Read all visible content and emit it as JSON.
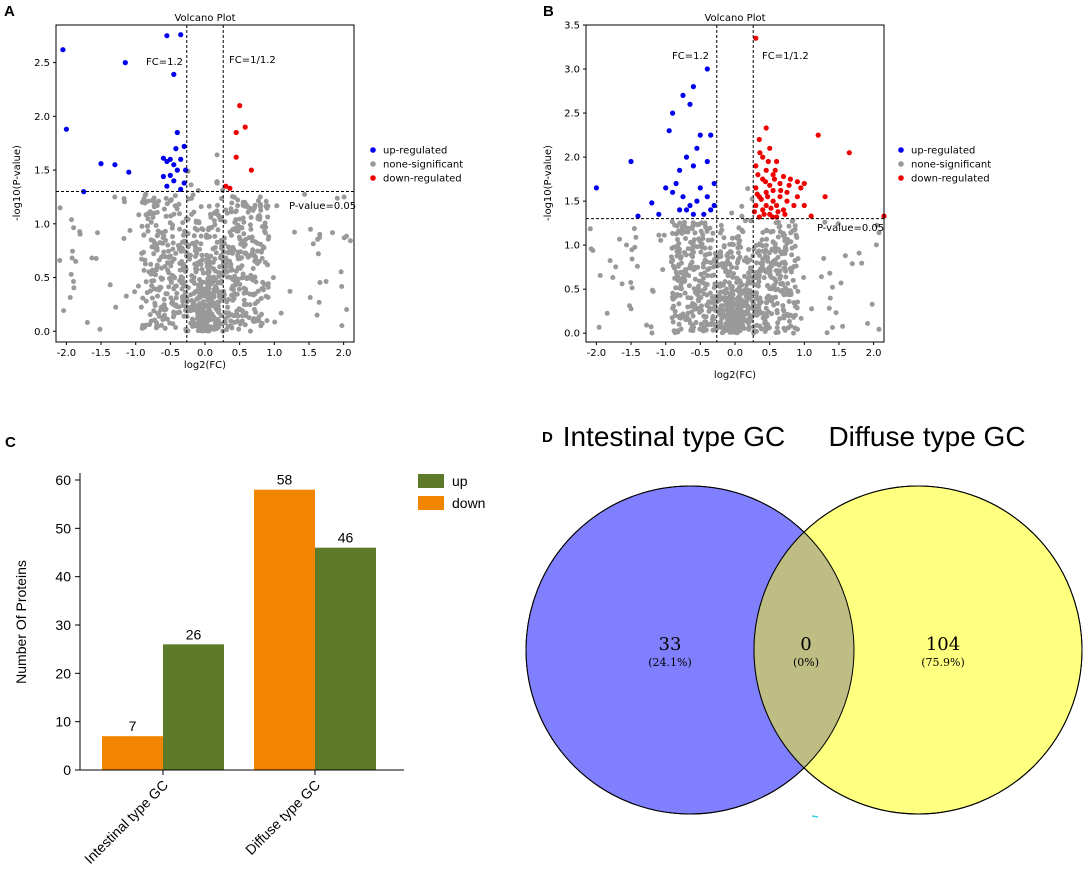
{
  "panels": {
    "a": "A",
    "b": "B",
    "c": "C",
    "d": "D"
  },
  "chart_data": [
    {
      "type": "scatter",
      "panel": "A",
      "title": "Volcano Plot",
      "xlabel": "log2(FC)",
      "ylabel": "-log10(P-value)",
      "xlim": [
        -2.15,
        2.15
      ],
      "ylim": [
        -0.1,
        2.85
      ],
      "xticks": [
        "-2.0",
        "-1.5",
        "-1.0",
        "-0.5",
        "0.0",
        "0.5",
        "1.0",
        "1.5",
        "2.0"
      ],
      "xtick_values": [
        -2.0,
        -1.5,
        -1.0,
        -0.5,
        0.0,
        0.5,
        1.0,
        1.5,
        2.0
      ],
      "yticks": [
        "0.0",
        "0.5",
        "1.0",
        "1.5",
        "2.0",
        "2.5"
      ],
      "ytick_values": [
        0.0,
        0.5,
        1.0,
        1.5,
        2.0,
        2.5
      ],
      "fc_left": -0.263,
      "fc_right": 0.263,
      "pvalue_line": 1.301,
      "annotations": {
        "fc_left": "FC=1.2",
        "fc_right": "FC=1/1.2",
        "pvalue": "P-value=0.05"
      },
      "legend": [
        {
          "label": "up-regulated",
          "color": "#0000ee"
        },
        {
          "label": "none-significant",
          "color": "#999999"
        },
        {
          "label": "down-regulated",
          "color": "#ee0000"
        }
      ],
      "series": [
        {
          "name": "up-regulated",
          "color": "#0000ee",
          "points": [
            [
              -2.05,
              2.62
            ],
            [
              -2.0,
              1.88
            ],
            [
              -1.15,
              2.5
            ],
            [
              -0.55,
              2.75
            ],
            [
              -0.35,
              2.76
            ],
            [
              -0.45,
              2.39
            ],
            [
              -1.75,
              1.3
            ],
            [
              -1.5,
              1.56
            ],
            [
              -1.3,
              1.55
            ],
            [
              -1.1,
              1.48
            ],
            [
              -0.6,
              1.61
            ],
            [
              -0.55,
              1.58
            ],
            [
              -0.45,
              1.55
            ],
            [
              -0.35,
              1.6
            ],
            [
              -0.4,
              1.5
            ],
            [
              -0.5,
              1.45
            ],
            [
              -0.3,
              1.38
            ],
            [
              -0.45,
              1.4
            ],
            [
              -0.55,
              1.35
            ],
            [
              -0.35,
              1.32
            ],
            [
              -0.4,
              1.85
            ],
            [
              -0.3,
              1.72
            ],
            [
              -0.5,
              1.6
            ],
            [
              -0.6,
              1.44
            ],
            [
              -0.28,
              1.5
            ],
            [
              -0.42,
              1.7
            ]
          ]
        },
        {
          "name": "down-regulated",
          "color": "#ee0000",
          "points": [
            [
              0.5,
              2.1
            ],
            [
              0.58,
              1.9
            ],
            [
              0.45,
              1.85
            ],
            [
              0.45,
              1.62
            ],
            [
              0.67,
              1.5
            ],
            [
              0.3,
              1.35
            ],
            [
              0.36,
              1.33
            ]
          ]
        }
      ]
    },
    {
      "type": "scatter",
      "panel": "B",
      "title": "Volcano Plot",
      "xlabel": "log2(FC)",
      "ylabel": "-log10(P-value)",
      "xlim": [
        -2.15,
        2.15
      ],
      "ylim": [
        -0.1,
        3.5
      ],
      "xticks": [
        "-2.0",
        "-1.5",
        "-1.0",
        "-0.5",
        "0.0",
        "0.5",
        "1.0",
        "1.5",
        "2.0"
      ],
      "xtick_values": [
        -2.0,
        -1.5,
        -1.0,
        -0.5,
        0.0,
        0.5,
        1.0,
        1.5,
        2.0
      ],
      "yticks": [
        "0.0",
        "0.5",
        "1.0",
        "1.5",
        "2.0",
        "2.5",
        "3.0",
        "3.5"
      ],
      "ytick_values": [
        0.0,
        0.5,
        1.0,
        1.5,
        2.0,
        2.5,
        3.0,
        3.5
      ],
      "fc_left": -0.263,
      "fc_right": 0.263,
      "pvalue_line": 1.301,
      "annotations": {
        "fc_left": "FC=1.2",
        "fc_right": "FC=1/1.2",
        "pvalue": "P-value=0.05"
      },
      "legend": [
        {
          "label": "up-regulated",
          "color": "#0000ee"
        },
        {
          "label": "none-significant",
          "color": "#999999"
        },
        {
          "label": "down-regulated",
          "color": "#ee0000"
        }
      ],
      "series": [
        {
          "name": "up-regulated",
          "color": "#0000ee",
          "points": [
            [
              -2.0,
              1.65
            ],
            [
              -1.5,
              1.95
            ],
            [
              -1.4,
              1.33
            ],
            [
              -1.2,
              1.48
            ],
            [
              -1.1,
              1.35
            ],
            [
              -0.95,
              2.3
            ],
            [
              -0.9,
              2.5
            ],
            [
              -0.75,
              2.7
            ],
            [
              -0.65,
              2.6
            ],
            [
              -0.6,
              2.8
            ],
            [
              -0.4,
              3.0
            ],
            [
              -0.35,
              2.25
            ],
            [
              -0.5,
              2.25
            ],
            [
              -0.55,
              2.1
            ],
            [
              -0.7,
              2.0
            ],
            [
              -0.8,
              1.85
            ],
            [
              -0.6,
              1.9
            ],
            [
              -0.4,
              1.95
            ],
            [
              -0.3,
              1.7
            ],
            [
              -0.85,
              1.7
            ],
            [
              -0.75,
              1.55
            ],
            [
              -0.65,
              1.45
            ],
            [
              -0.55,
              1.5
            ],
            [
              -0.45,
              1.35
            ],
            [
              -0.35,
              1.4
            ],
            [
              -0.6,
              1.35
            ],
            [
              -0.7,
              1.4
            ],
            [
              -0.5,
              1.65
            ],
            [
              -0.4,
              1.55
            ],
            [
              -0.3,
              1.45
            ],
            [
              -0.9,
              1.6
            ],
            [
              -0.8,
              1.4
            ],
            [
              -1.0,
              1.65
            ]
          ]
        },
        {
          "name": "down-regulated",
          "color": "#ee0000",
          "points": [
            [
              0.3,
              3.35
            ],
            [
              0.45,
              2.33
            ],
            [
              0.35,
              2.2
            ],
            [
              0.5,
              2.1
            ],
            [
              0.4,
              2.0
            ],
            [
              0.6,
              1.95
            ],
            [
              0.3,
              1.9
            ],
            [
              0.45,
              1.85
            ],
            [
              0.55,
              1.8
            ],
            [
              0.7,
              1.78
            ],
            [
              0.8,
              1.75
            ],
            [
              0.9,
              1.72
            ],
            [
              1.2,
              2.25
            ],
            [
              1.65,
              2.05
            ],
            [
              1.3,
              1.55
            ],
            [
              2.15,
              1.33
            ],
            [
              1.1,
              1.33
            ],
            [
              1.0,
              1.45
            ],
            [
              0.95,
              1.65
            ],
            [
              0.75,
              1.6
            ],
            [
              0.65,
              1.55
            ],
            [
              0.55,
              1.5
            ],
            [
              0.45,
              1.6
            ],
            [
              0.35,
              1.55
            ],
            [
              0.3,
              1.45
            ],
            [
              0.4,
              1.4
            ],
            [
              0.5,
              1.35
            ],
            [
              0.6,
              1.32
            ],
            [
              0.35,
              1.32
            ],
            [
              0.28,
              1.38
            ],
            [
              0.85,
              1.45
            ],
            [
              0.7,
              1.4
            ],
            [
              0.45,
              1.45
            ],
            [
              0.55,
              1.62
            ],
            [
              0.65,
              1.7
            ],
            [
              0.3,
              1.65
            ],
            [
              0.4,
              1.75
            ],
            [
              0.5,
              1.68
            ],
            [
              0.75,
              1.5
            ],
            [
              0.6,
              1.45
            ],
            [
              0.38,
              1.52
            ],
            [
              0.32,
              1.58
            ],
            [
              0.42,
              1.35
            ],
            [
              0.52,
              1.42
            ],
            [
              0.62,
              1.38
            ],
            [
              0.72,
              1.35
            ],
            [
              0.9,
              1.55
            ],
            [
              1.0,
              1.7
            ],
            [
              0.48,
              1.95
            ],
            [
              0.58,
              1.85
            ],
            [
              0.36,
              2.05
            ],
            [
              0.44,
              1.72
            ],
            [
              0.54,
              1.32
            ],
            [
              0.66,
              1.62
            ],
            [
              0.78,
              1.68
            ],
            [
              0.33,
              1.8
            ],
            [
              0.47,
              1.55
            ],
            [
              0.57,
              1.75
            ]
          ]
        }
      ]
    },
    {
      "type": "bar",
      "panel": "C",
      "title": "",
      "xlabel": "",
      "ylabel": "Number Of Proteins",
      "ylim": [
        0,
        60
      ],
      "yticks": [
        "0",
        "10",
        "20",
        "30",
        "40",
        "50",
        "60"
      ],
      "ytick_values": [
        0,
        10,
        20,
        30,
        40,
        50,
        60
      ],
      "categories": [
        "Intestinal type GC",
        "Diffuse type GC"
      ],
      "series": [
        {
          "name": "down",
          "color": "#f28500",
          "values": [
            7,
            58
          ],
          "labels": [
            "7",
            "58"
          ]
        },
        {
          "name": "up",
          "color": "#5c7a29",
          "values": [
            26,
            46
          ],
          "labels": [
            "26",
            "46"
          ]
        }
      ],
      "legend": [
        {
          "label": "up",
          "color": "#5c7a29"
        },
        {
          "label": "down",
          "color": "#f28500"
        }
      ]
    },
    {
      "type": "venn",
      "panel": "D",
      "sets": [
        {
          "name": "Intestinal type GC",
          "color": "#8080ff"
        },
        {
          "name": "Diffuse type GC",
          "color": "#ffff80"
        }
      ],
      "overlap_color": "#bdbd84",
      "regions": [
        {
          "count": "33",
          "percent": "(24.1%)"
        },
        {
          "count": "0",
          "percent": "(0%)"
        },
        {
          "count": "104",
          "percent": "(75.9%)"
        }
      ]
    }
  ]
}
